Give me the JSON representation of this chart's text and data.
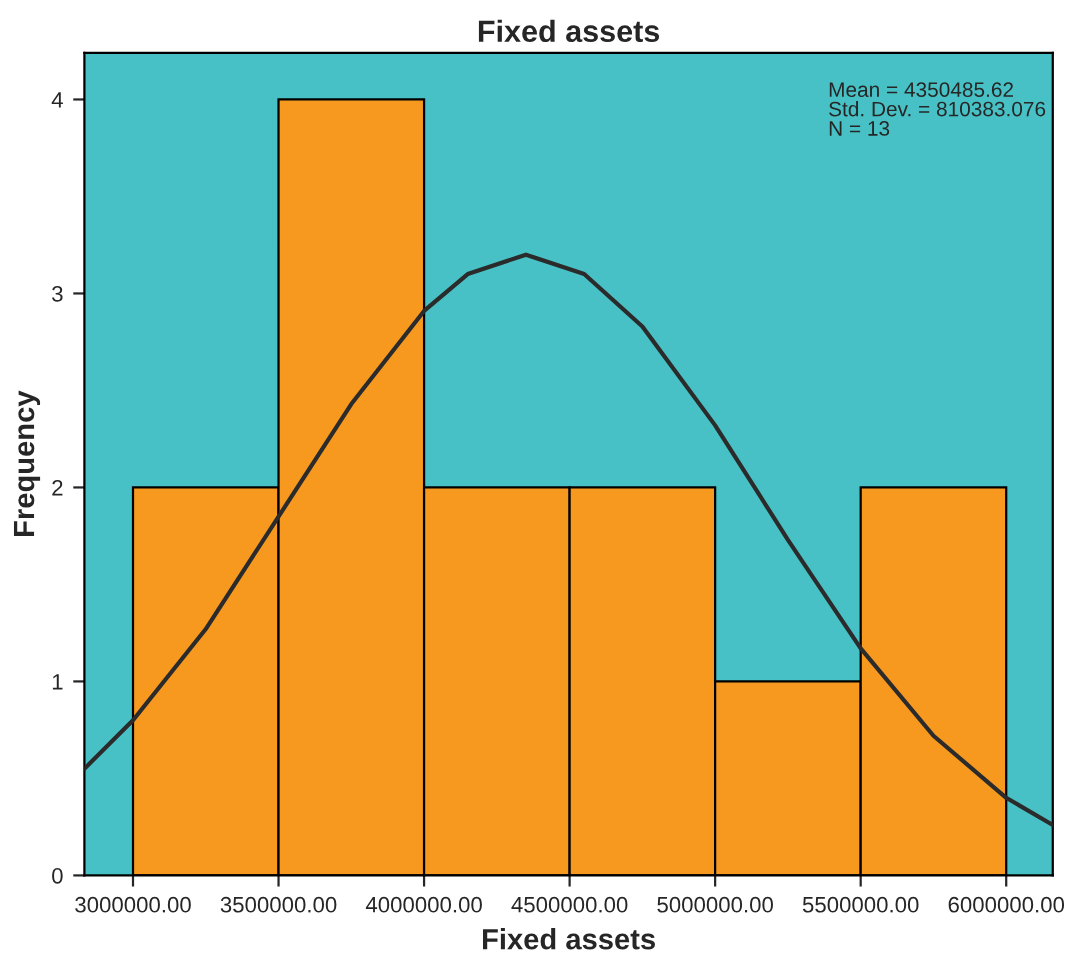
{
  "chart_data": {
    "type": "histogram",
    "title": "Fixed assets",
    "xlabel": "Fixed assets",
    "ylabel": "Frequency",
    "series": [
      {
        "bins": [
          3000000,
          3500000,
          4000000,
          4500000,
          5000000,
          5500000,
          6000000
        ],
        "values": [
          2,
          4,
          2,
          2,
          1,
          2
        ],
        "color": "#f7991f"
      },
      {
        "type": "line",
        "color": "#2b2b2b",
        "x": [
          2833000,
          3000000,
          3250000,
          3500000,
          3750000,
          4000000,
          4150000,
          4350000,
          4550000,
          4750000,
          5000000,
          5250000,
          5500000,
          5750000,
          6000000,
          6160000
        ],
        "values": [
          0.55,
          0.8,
          1.27,
          1.85,
          2.43,
          2.91,
          3.1,
          3.2,
          3.1,
          2.83,
          2.32,
          1.73,
          1.17,
          0.72,
          0.4,
          0.26
        ]
      }
    ],
    "xlim": [
      2833000,
      6160000
    ],
    "xticks": [
      {
        "value": 3000000,
        "label": "3000000.00"
      },
      {
        "value": 3500000,
        "label": "3500000.00"
      },
      {
        "value": 4000000,
        "label": "4000000.00"
      },
      {
        "value": 4500000,
        "label": "4500000.00"
      },
      {
        "value": 5000000,
        "label": "5000000.00"
      },
      {
        "value": 5500000,
        "label": "5500000.00"
      },
      {
        "value": 6000000,
        "label": "6000000.00"
      }
    ],
    "ylim": [
      0,
      4.24
    ],
    "yticks": [
      0,
      1,
      2,
      3,
      4
    ],
    "grid": false,
    "legend": false,
    "annotations": [
      "Mean = 4350485.62",
      "Std. Dev. = 810383.076",
      "N = 13"
    ]
  }
}
